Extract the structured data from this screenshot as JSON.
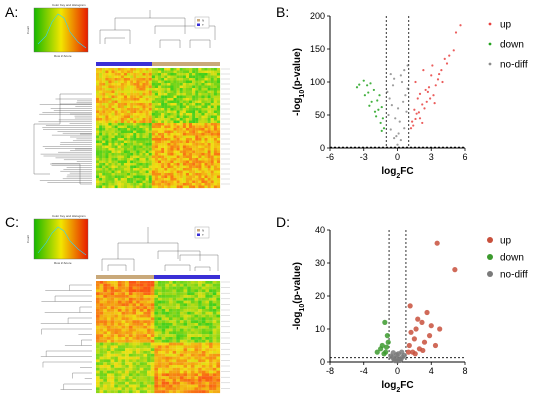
{
  "panels": {
    "a": "A:",
    "b": "B:",
    "c": "C:",
    "d": "D:"
  },
  "colorkey_a": {
    "title": "Color Key and Histogram",
    "xlabel": "Row Z-Score",
    "ylabel": "Count"
  },
  "colorkey_c": {
    "title": "Color Key and Histogram",
    "xlabel": "Row Z-Score",
    "ylabel": "Count"
  },
  "group_legend": {
    "n": "N",
    "t": "T"
  },
  "colors": {
    "up": "#e8413f",
    "down": "#22a31e",
    "nodiff": "#8c8c8c",
    "up_d": "#c8503c",
    "down_d": "#3c9a2e",
    "nodiff_d": "#7a7a7a",
    "group_tan": "#c9a97a",
    "group_blue": "#3a2fd6"
  },
  "chart_data": [
    {
      "panel": "B",
      "type": "scatter",
      "xlabel": "log2FC",
      "ylabel": "-log10(p-value)",
      "xlim": [
        -6,
        6
      ],
      "ylim": [
        0,
        200
      ],
      "xticks": [
        "-6",
        "-3",
        "0",
        "3",
        "6"
      ],
      "yticks": [
        "0",
        "50",
        "100",
        "150",
        "200"
      ],
      "vlines": [
        -1,
        1
      ],
      "hline": 1.3,
      "legend": [
        "up",
        "down",
        "no-diff"
      ],
      "series": [
        {
          "name": "up",
          "points": [
            [
              2.3,
              118
            ],
            [
              1.6,
              100
            ],
            [
              3.1,
              125
            ],
            [
              3.0,
              110
            ],
            [
              4.2,
              135
            ],
            [
              2.5,
              88
            ],
            [
              2.0,
              82
            ],
            [
              3.6,
              104
            ],
            [
              1.8,
              75
            ],
            [
              4.6,
              140
            ],
            [
              1.5,
              58
            ],
            [
              2.8,
              92
            ],
            [
              3.2,
              80
            ],
            [
              2.2,
              66
            ],
            [
              1.3,
              40
            ],
            [
              2.6,
              70
            ],
            [
              3.9,
              118
            ],
            [
              1.7,
              52
            ],
            [
              2.4,
              60
            ],
            [
              3.4,
              95
            ],
            [
              1.2,
              30
            ],
            [
              2.0,
              45
            ],
            [
              2.9,
              75
            ],
            [
              4.0,
              100
            ],
            [
              1.4,
              34
            ],
            [
              5.0,
              148
            ],
            [
              5.6,
              186
            ],
            [
              5.2,
              175
            ],
            [
              4.4,
              128
            ],
            [
              1.9,
              54
            ],
            [
              2.7,
              85
            ],
            [
              3.7,
              112
            ],
            [
              1.6,
              44
            ],
            [
              2.2,
              38
            ],
            [
              3.3,
              68
            ]
          ]
        },
        {
          "name": "down",
          "points": [
            [
              -2.4,
              98
            ],
            [
              -2.7,
              95
            ],
            [
              -1.6,
              80
            ],
            [
              -2.1,
              88
            ],
            [
              -1.4,
              62
            ],
            [
              -3.0,
              102
            ],
            [
              -1.8,
              72
            ],
            [
              -2.5,
              64
            ],
            [
              -1.3,
              45
            ],
            [
              -3.4,
              96
            ],
            [
              -2.0,
              55
            ],
            [
              -1.5,
              38
            ],
            [
              -2.9,
              80
            ],
            [
              -1.2,
              30
            ],
            [
              -2.3,
              70
            ],
            [
              -1.9,
              48
            ],
            [
              -3.6,
              92
            ],
            [
              -1.7,
              58
            ],
            [
              -2.6,
              84
            ],
            [
              -1.4,
              26
            ]
          ]
        },
        {
          "name": "no-diff",
          "points": [
            [
              0,
              5
            ],
            [
              0.3,
              12
            ],
            [
              -0.3,
              15
            ],
            [
              0.6,
              30
            ],
            [
              -0.6,
              28
            ],
            [
              0.8,
              55
            ],
            [
              -0.8,
              50
            ],
            [
              0.2,
              40
            ],
            [
              -0.2,
              45
            ],
            [
              0.5,
              70
            ],
            [
              -0.5,
              65
            ],
            [
              0.9,
              90
            ],
            [
              -0.9,
              85
            ],
            [
              0.1,
              22
            ],
            [
              -0.1,
              18
            ],
            [
              0.4,
              100
            ],
            [
              -0.4,
              95
            ],
            [
              0.7,
              80
            ],
            [
              -0.7,
              75
            ],
            [
              0.05,
              60
            ],
            [
              0.3,
              110
            ],
            [
              -0.3,
              105
            ],
            [
              0.6,
              118
            ],
            [
              -0.6,
              112
            ],
            [
              0.9,
              125
            ]
          ]
        }
      ]
    },
    {
      "panel": "D",
      "type": "scatter",
      "xlabel": "log2FC",
      "ylabel": "-log10(p-value)",
      "xlim": [
        -8,
        8
      ],
      "ylim": [
        0,
        40
      ],
      "xticks": [
        "-8",
        "-4",
        "0",
        "4",
        "8"
      ],
      "yticks": [
        "0",
        "10",
        "20",
        "30",
        "40"
      ],
      "vlines": [
        -1,
        1
      ],
      "hline": 1.3,
      "legend": [
        "up",
        "down",
        "no-diff"
      ],
      "series": [
        {
          "name": "up",
          "points": [
            [
              4.7,
              36
            ],
            [
              6.8,
              28
            ],
            [
              1.5,
              17
            ],
            [
              2.2,
              10
            ],
            [
              3.5,
              15
            ],
            [
              2.0,
              7
            ],
            [
              1.4,
              5
            ],
            [
              1.8,
              3
            ],
            [
              2.6,
              4
            ],
            [
              3.2,
              6
            ],
            [
              4.0,
              11
            ],
            [
              2.4,
              13
            ],
            [
              1.6,
              9
            ],
            [
              3.8,
              8
            ],
            [
              2.9,
              12
            ],
            [
              4.5,
              5
            ],
            [
              1.3,
              3
            ],
            [
              2.1,
              2.5
            ],
            [
              3.0,
              3.5
            ],
            [
              5.0,
              10
            ]
          ]
        },
        {
          "name": "down",
          "points": [
            [
              -1.5,
              12
            ],
            [
              -1.2,
              8
            ],
            [
              -1.8,
              5
            ],
            [
              -1.4,
              3
            ],
            [
              -2.0,
              4
            ],
            [
              -1.1,
              6
            ],
            [
              -1.6,
              2.5
            ],
            [
              -2.4,
              3
            ],
            [
              -1.3,
              4.5
            ]
          ]
        },
        {
          "name": "no-diff",
          "points": [
            [
              0,
              0.3
            ],
            [
              0.2,
              1.0
            ],
            [
              -0.2,
              1.2
            ],
            [
              0.4,
              0.8
            ],
            [
              -0.4,
              0.6
            ],
            [
              0.6,
              1.5
            ],
            [
              -0.6,
              1.4
            ],
            [
              0.8,
              2.0
            ],
            [
              -0.8,
              1.8
            ],
            [
              0.1,
              2.5
            ],
            [
              -0.1,
              2.2
            ],
            [
              0.5,
              3.0
            ],
            [
              -0.5,
              2.8
            ],
            [
              0.3,
              0.5
            ],
            [
              -0.3,
              0.4
            ]
          ]
        }
      ]
    }
  ]
}
